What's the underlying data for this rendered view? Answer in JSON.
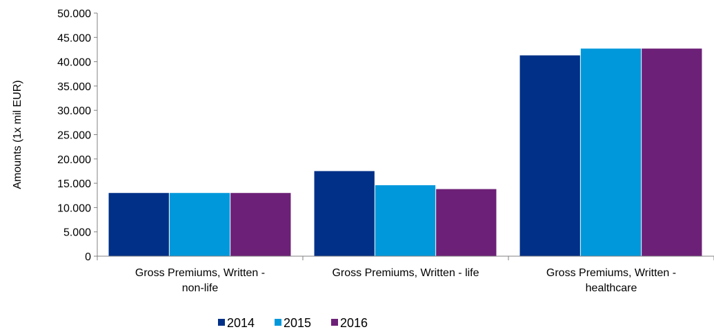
{
  "chart_data": {
    "type": "bar",
    "ylabel": "Amounts (1x mil EUR)",
    "ylim": [
      0,
      50000
    ],
    "yticks": [
      0,
      5000,
      10000,
      15000,
      20000,
      25000,
      30000,
      35000,
      40000,
      45000,
      50000
    ],
    "ytick_labels": [
      "0",
      "5.000",
      "10.000",
      "15.000",
      "20.000",
      "25.000",
      "30.000",
      "35.000",
      "40.000",
      "45.000",
      "50.000"
    ],
    "categories": [
      [
        "Gross Premiums, Written -",
        "non-life"
      ],
      [
        "Gross Premiums, Written - life"
      ],
      [
        "Gross Premiums, Written -",
        "healthcare"
      ]
    ],
    "series": [
      {
        "name": "2014",
        "color": "#003087",
        "values": [
          13000,
          17500,
          41300
        ]
      },
      {
        "name": "2015",
        "color": "#0098DB",
        "values": [
          13000,
          14600,
          42700
        ]
      },
      {
        "name": "2016",
        "color": "#6D2077",
        "values": [
          13000,
          13800,
          42700
        ]
      }
    ],
    "legend_position": "bottom",
    "grid": false
  }
}
